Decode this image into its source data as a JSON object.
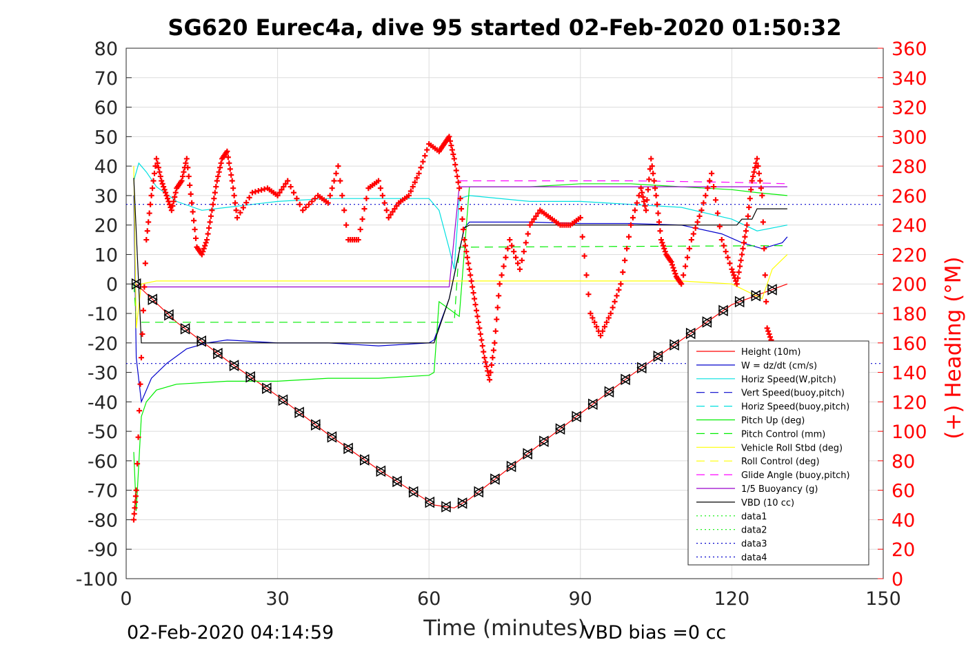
{
  "chart_data": {
    "type": "line",
    "title": "SG620 Eurec4a, dive 95 started 02-Feb-2020 01:50:32",
    "xlabel": "Time (minutes)",
    "ylabel": "",
    "y2label": "(+) Heading (°M)",
    "xlim": [
      0,
      150
    ],
    "ylim": [
      -100,
      80
    ],
    "y2lim": [
      0,
      360
    ],
    "xticks": [
      "0",
      "30",
      "60",
      "90",
      "120",
      "150"
    ],
    "yticks": [
      "80",
      "70",
      "60",
      "50",
      "40",
      "30",
      "20",
      "10",
      "0",
      "-10",
      "-20",
      "-30",
      "-40",
      "-50",
      "-60",
      "-70",
      "-80",
      "-90",
      "-100"
    ],
    "y2ticks": [
      "360",
      "340",
      "320",
      "300",
      "280",
      "260",
      "240",
      "220",
      "200",
      "180",
      "160",
      "140",
      "120",
      "100",
      "80",
      "60",
      "40",
      "20",
      "0"
    ],
    "grid": true,
    "legend_position": "bottom-right",
    "footer_left": "02-Feb-2020 04:14:59",
    "footer_right": "VBD bias =0 cc",
    "series": [
      {
        "name": "Height (10m)",
        "color": "#ff0000",
        "style": "solid",
        "x": [
          2,
          10,
          20,
          30,
          40,
          50,
          61,
          65,
          68,
          80,
          90,
          100,
          110,
          120,
          131
        ],
        "y": [
          0,
          -13,
          -26,
          -38,
          -51,
          -63,
          -75,
          -76,
          -73,
          -57,
          -44,
          -31,
          -19,
          -7,
          0
        ]
      },
      {
        "name": "W = dz/dt (cm/s)",
        "color": "#0000cc",
        "style": "solid",
        "x": [
          1.5,
          2,
          3,
          5,
          8,
          12,
          16,
          20,
          30,
          40,
          50,
          60,
          61,
          64,
          67,
          68,
          80,
          90,
          100,
          110,
          118,
          122,
          126,
          130,
          131
        ],
        "y": [
          30,
          -25,
          -40,
          -32,
          -27,
          -22,
          -20,
          -19,
          -20,
          -20,
          -21,
          -20,
          -19,
          -5,
          19,
          21,
          21,
          20.5,
          20.5,
          20,
          17,
          14,
          12,
          14,
          16
        ]
      },
      {
        "name": "Horiz Speed(W,pitch)",
        "color": "#00e0e0",
        "style": "solid",
        "x": [
          1.5,
          2.5,
          4,
          6,
          10,
          15,
          20,
          30,
          40,
          50,
          60,
          62,
          64,
          65,
          66,
          68,
          80,
          90,
          100,
          110,
          120,
          125,
          131
        ],
        "y": [
          35,
          41,
          38,
          33,
          28,
          25,
          26,
          28,
          29,
          29,
          29,
          25,
          12,
          5,
          29,
          30,
          28,
          28,
          27,
          26,
          22,
          18,
          20
        ]
      },
      {
        "name": "Vert Speed(buoy,pitch)",
        "color": "#0000cc",
        "style": "dashed",
        "x": [],
        "y": []
      },
      {
        "name": "Horiz Speed(buoy,pitch)",
        "color": "#00e0e0",
        "style": "dashed",
        "x": [],
        "y": []
      },
      {
        "name": "Pitch Up (deg)",
        "color": "#00ee00",
        "style": "solid",
        "x": [
          1.5,
          2,
          3,
          4,
          6,
          10,
          20,
          30,
          40,
          50,
          60,
          61,
          62,
          66,
          68,
          80,
          90,
          100,
          110,
          120,
          125,
          131
        ],
        "y": [
          -57,
          -77,
          -45,
          -40,
          -36,
          -34,
          -33,
          -33,
          -32,
          -32,
          -31,
          -30,
          -6,
          -11,
          33,
          33,
          34,
          34,
          33,
          32,
          31,
          30
        ]
      },
      {
        "name": "Pitch Control (mm)",
        "color": "#00ee00",
        "style": "dashed",
        "x": [
          1.5,
          2,
          3,
          65,
          66,
          131
        ],
        "y": [
          0,
          -12,
          -13,
          -13,
          12.5,
          13
        ]
      },
      {
        "name": "Vehicle Roll Stbd (deg)",
        "color": "#ffff00",
        "style": "solid",
        "x": [
          1.5,
          2,
          3,
          6,
          10,
          20,
          30,
          40,
          50,
          60,
          68,
          80,
          90,
          100,
          110,
          120,
          126,
          128,
          131
        ],
        "y": [
          40,
          -15,
          0,
          1,
          1,
          1,
          1,
          1,
          1,
          1,
          1,
          1,
          1,
          1,
          1,
          0,
          -5,
          5,
          10
        ]
      },
      {
        "name": "Roll Control (deg)",
        "color": "#ffff00",
        "style": "dashed",
        "x": [],
        "y": []
      },
      {
        "name": "Glide Angle (buoy,pitch)",
        "color": "#ff00ff",
        "style": "dashed",
        "x": [
          66,
          80,
          100,
          120,
          131
        ],
        "y": [
          35,
          35,
          35,
          34.5,
          34
        ]
      },
      {
        "name": "1/5 Buoyancy (g)",
        "color": "#9900cc",
        "style": "solid",
        "x": [
          2,
          64,
          66,
          80,
          100,
          120,
          131
        ],
        "y": [
          -1,
          -1,
          33,
          33,
          33,
          33,
          33
        ]
      },
      {
        "name": "VBD (10 cc)",
        "color": "#000000",
        "style": "solid",
        "x": [
          1.5,
          3,
          61,
          64,
          67,
          68,
          121,
          122,
          124,
          125,
          131
        ],
        "y": [
          36,
          -20,
          -20,
          -5,
          19,
          20,
          20,
          22,
          22,
          25.5,
          25.5
        ]
      },
      {
        "name": "data1",
        "color": "#00ee00",
        "style": "dotted",
        "x": [],
        "y": []
      },
      {
        "name": "data2",
        "color": "#00ee00",
        "style": "dotted",
        "x": [],
        "y": []
      },
      {
        "name": "data3",
        "color": "#0000cc",
        "style": "dotted",
        "x": [
          0,
          150
        ],
        "y": [
          27,
          27
        ]
      },
      {
        "name": "data4",
        "color": "#0000cc",
        "style": "dotted",
        "x": [
          0,
          150
        ],
        "y": [
          -27,
          -27
        ]
      }
    ],
    "heading": {
      "name": "(+) Heading",
      "color": "#ff0000",
      "axis": "right",
      "x": [
        1.5,
        2,
        3,
        4,
        5,
        6,
        7,
        8,
        9,
        10,
        11,
        12,
        13,
        14,
        15,
        16,
        17,
        18,
        19,
        20,
        21,
        22,
        25,
        28,
        30,
        32,
        35,
        38,
        40,
        42,
        44,
        46,
        48,
        50,
        52,
        54,
        56,
        58,
        60,
        62,
        63,
        64,
        65,
        66,
        67,
        68,
        69,
        70,
        71,
        72,
        73,
        74,
        76,
        78,
        80,
        82,
        84,
        86,
        88,
        90,
        92,
        94,
        96,
        98,
        100,
        102,
        103,
        104,
        105,
        106,
        107,
        108,
        109,
        110,
        112,
        114,
        116,
        118,
        120,
        121,
        122,
        123,
        124,
        125,
        126,
        127,
        128
      ],
      "y": [
        40,
        60,
        150,
        230,
        260,
        285,
        270,
        260,
        250,
        265,
        270,
        285,
        255,
        225,
        220,
        230,
        250,
        270,
        285,
        290,
        270,
        245,
        262,
        265,
        260,
        270,
        250,
        260,
        255,
        280,
        230,
        230,
        265,
        270,
        245,
        255,
        260,
        275,
        295,
        290,
        295,
        300,
        285,
        265,
        230,
        210,
        190,
        170,
        150,
        135,
        160,
        200,
        230,
        210,
        240,
        250,
        245,
        240,
        240,
        245,
        180,
        165,
        180,
        200,
        240,
        265,
        250,
        285,
        260,
        230,
        220,
        215,
        205,
        200,
        230,
        250,
        275,
        230,
        210,
        200,
        220,
        240,
        270,
        285,
        260,
        170,
        160
      ]
    }
  }
}
